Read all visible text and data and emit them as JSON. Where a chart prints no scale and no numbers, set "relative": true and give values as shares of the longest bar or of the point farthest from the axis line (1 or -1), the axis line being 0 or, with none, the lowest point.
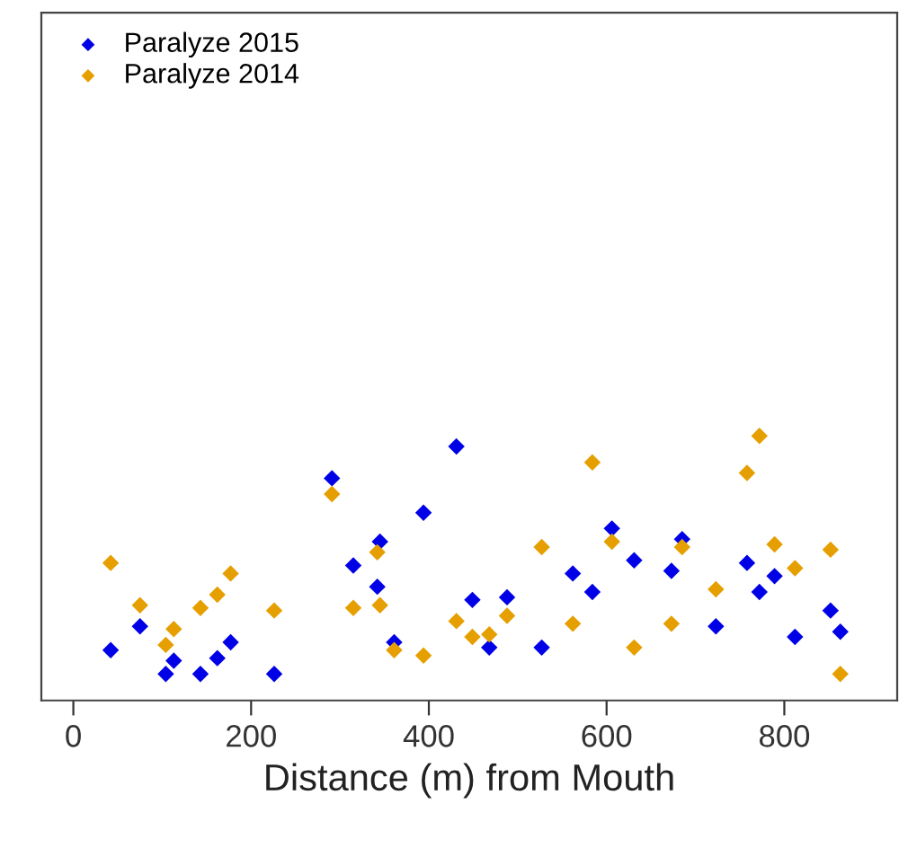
{
  "chart_data": {
    "type": "scatter",
    "xlabel": "Distance (m) from Mouth",
    "relative": true,
    "xlim": [
      -36,
      927
    ],
    "xticks": [
      0,
      200,
      400,
      600,
      800
    ],
    "grid": false,
    "legend": "top left",
    "marker": "diamond",
    "series": [
      {
        "name": "Paralyze 2015",
        "color": "#0000e6",
        "x": [
          42,
          75,
          104,
          113,
          143,
          162,
          177,
          226,
          291,
          315,
          345,
          342,
          361,
          394,
          431,
          449,
          468,
          488,
          527,
          562,
          584,
          606,
          631,
          673,
          685,
          723,
          758,
          772,
          789,
          812,
          852,
          863
        ],
        "values": [
          0.19,
          0.28,
          0.1,
          0.15,
          0.1,
          0.16,
          0.22,
          0.1,
          0.84,
          0.51,
          0.6,
          0.43,
          0.22,
          0.71,
          0.96,
          0.38,
          0.2,
          0.39,
          0.2,
          0.48,
          0.41,
          0.65,
          0.53,
          0.49,
          0.61,
          0.28,
          0.52,
          0.41,
          0.47,
          0.24,
          0.34,
          0.26
        ]
      },
      {
        "name": "Paralyze 2014",
        "color": "#e69f00",
        "x": [
          42,
          75,
          104,
          113,
          143,
          162,
          177,
          226,
          291,
          315,
          342,
          345,
          361,
          394,
          431,
          449,
          468,
          488,
          527,
          562,
          584,
          606,
          631,
          673,
          685,
          723,
          758,
          772,
          789,
          812,
          852,
          863
        ],
        "values": [
          0.52,
          0.36,
          0.21,
          0.27,
          0.35,
          0.4,
          0.48,
          0.34,
          0.78,
          0.35,
          0.56,
          0.36,
          0.19,
          0.17,
          0.3,
          0.24,
          0.25,
          0.32,
          0.58,
          0.29,
          0.9,
          0.6,
          0.2,
          0.29,
          0.58,
          0.42,
          0.86,
          1,
          0.59,
          0.5,
          0.57,
          0.1
        ]
      }
    ]
  }
}
